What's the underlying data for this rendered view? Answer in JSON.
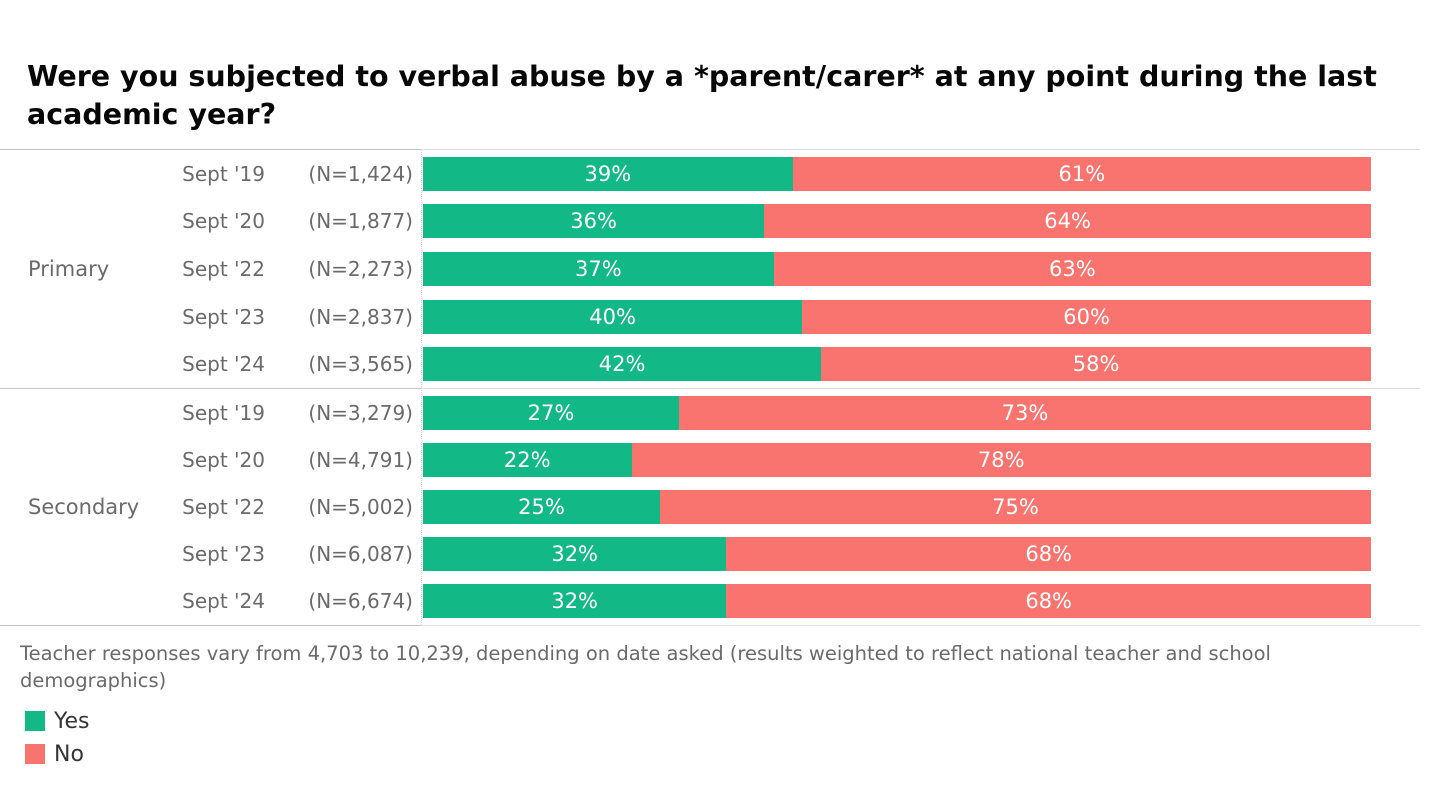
{
  "title": "Were you subjected to verbal abuse by a *parent/carer* at any point during the last academic year?",
  "footnote": "Teacher responses vary from 4,703 to 10,239, depending on date asked (results weighted to reflect national teacher and school demographics)",
  "colors": {
    "yes": "#12b886",
    "no": "#f9746e"
  },
  "legend": {
    "yes_label": "Yes",
    "no_label": "No"
  },
  "chart_data": {
    "type": "bar",
    "stacked": true,
    "orientation": "horizontal",
    "unit": "%",
    "xlim": [
      0,
      100
    ],
    "grid": false,
    "legend_position": "bottom-left",
    "series_names": [
      "Yes",
      "No"
    ],
    "groups": [
      {
        "label": "Primary",
        "rows": [
          {
            "period": "Sept '19",
            "n_label": "(N=1,424)",
            "n": 1424,
            "yes": 39,
            "no": 61,
            "yes_label": "39%",
            "no_label": "61%"
          },
          {
            "period": "Sept '20",
            "n_label": "(N=1,877)",
            "n": 1877,
            "yes": 36,
            "no": 64,
            "yes_label": "36%",
            "no_label": "64%"
          },
          {
            "period": "Sept '22",
            "n_label": "(N=2,273)",
            "n": 2273,
            "yes": 37,
            "no": 63,
            "yes_label": "37%",
            "no_label": "63%"
          },
          {
            "period": "Sept '23",
            "n_label": "(N=2,837)",
            "n": 2837,
            "yes": 40,
            "no": 60,
            "yes_label": "40%",
            "no_label": "60%"
          },
          {
            "period": "Sept '24",
            "n_label": "(N=3,565)",
            "n": 3565,
            "yes": 42,
            "no": 58,
            "yes_label": "42%",
            "no_label": "58%"
          }
        ]
      },
      {
        "label": "Secondary",
        "rows": [
          {
            "period": "Sept '19",
            "n_label": "(N=3,279)",
            "n": 3279,
            "yes": 27,
            "no": 73,
            "yes_label": "27%",
            "no_label": "73%"
          },
          {
            "period": "Sept '20",
            "n_label": "(N=4,791)",
            "n": 4791,
            "yes": 22,
            "no": 78,
            "yes_label": "22%",
            "no_label": "78%"
          },
          {
            "period": "Sept '22",
            "n_label": "(N=5,002)",
            "n": 5002,
            "yes": 25,
            "no": 75,
            "yes_label": "25%",
            "no_label": "75%"
          },
          {
            "period": "Sept '23",
            "n_label": "(N=6,087)",
            "n": 6087,
            "yes": 32,
            "no": 68,
            "yes_label": "32%",
            "no_label": "68%"
          },
          {
            "period": "Sept '24",
            "n_label": "(N=6,674)",
            "n": 6674,
            "yes": 32,
            "no": 68,
            "yes_label": "32%",
            "no_label": "68%"
          }
        ]
      }
    ]
  }
}
